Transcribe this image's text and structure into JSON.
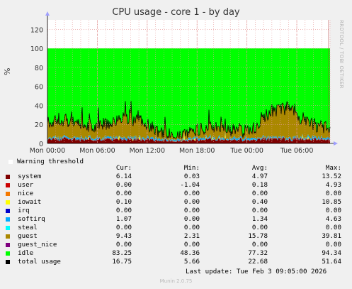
{
  "chart_data": {
    "type": "area",
    "title": "CPU usage - core 1 - by day",
    "ylabel": "%",
    "side_label": "RRDTOOL / TOBI OETIKER",
    "ylim": [
      0,
      130
    ],
    "y_ticks": [
      "0",
      "20",
      "40",
      "60",
      "80",
      "100",
      "120"
    ],
    "x_ticks": [
      "Mon 00:00",
      "Mon 06:00",
      "Mon 12:00",
      "Mon 18:00",
      "Tue 00:00",
      "Tue 06:00"
    ],
    "warning_threshold_label": "Warning threshold",
    "columns": [
      "Cur:",
      "Min:",
      "Avg:",
      "Max:"
    ],
    "series": [
      {
        "name": "system",
        "color": "#7f0000",
        "cur": "6.14",
        "min": "0.03",
        "avg": "4.97",
        "max": "13.52"
      },
      {
        "name": "user",
        "color": "#cc0000",
        "cur": "0.00",
        "min": "-1.04",
        "avg": "0.18",
        "max": "4.93"
      },
      {
        "name": "nice",
        "color": "#f57900",
        "cur": "0.00",
        "min": "0.00",
        "avg": "0.00",
        "max": "0.00"
      },
      {
        "name": "iowait",
        "color": "#ffff00",
        "cur": "0.10",
        "min": "0.00",
        "avg": "0.40",
        "max": "10.85"
      },
      {
        "name": "irq",
        "color": "#0000cc",
        "cur": "0.00",
        "min": "0.00",
        "avg": "0.00",
        "max": "0.00"
      },
      {
        "name": "softirq",
        "color": "#00aaff",
        "cur": "1.07",
        "min": "0.00",
        "avg": "1.34",
        "max": "4.63"
      },
      {
        "name": "steal",
        "color": "#00ffff",
        "cur": "0.00",
        "min": "0.00",
        "avg": "0.00",
        "max": "0.00"
      },
      {
        "name": "guest",
        "color": "#aa8800",
        "cur": "9.43",
        "min": "2.31",
        "avg": "15.78",
        "max": "39.81"
      },
      {
        "name": "guest_nice",
        "color": "#7f007f",
        "cur": "0.00",
        "min": "0.00",
        "avg": "0.00",
        "max": "0.00"
      },
      {
        "name": "idle",
        "color": "#00ff00",
        "cur": "83.25",
        "min": "48.36",
        "avg": "77.32",
        "max": "94.34"
      },
      {
        "name": "total usage",
        "color": "#000000",
        "cur": "16.75",
        "min": "5.66",
        "avg": "22.68",
        "max": "51.64"
      }
    ]
  },
  "footer": {
    "last_update": "Last update: Tue Feb  3 09:05:00 2026",
    "version": "Munin 2.0.75"
  }
}
